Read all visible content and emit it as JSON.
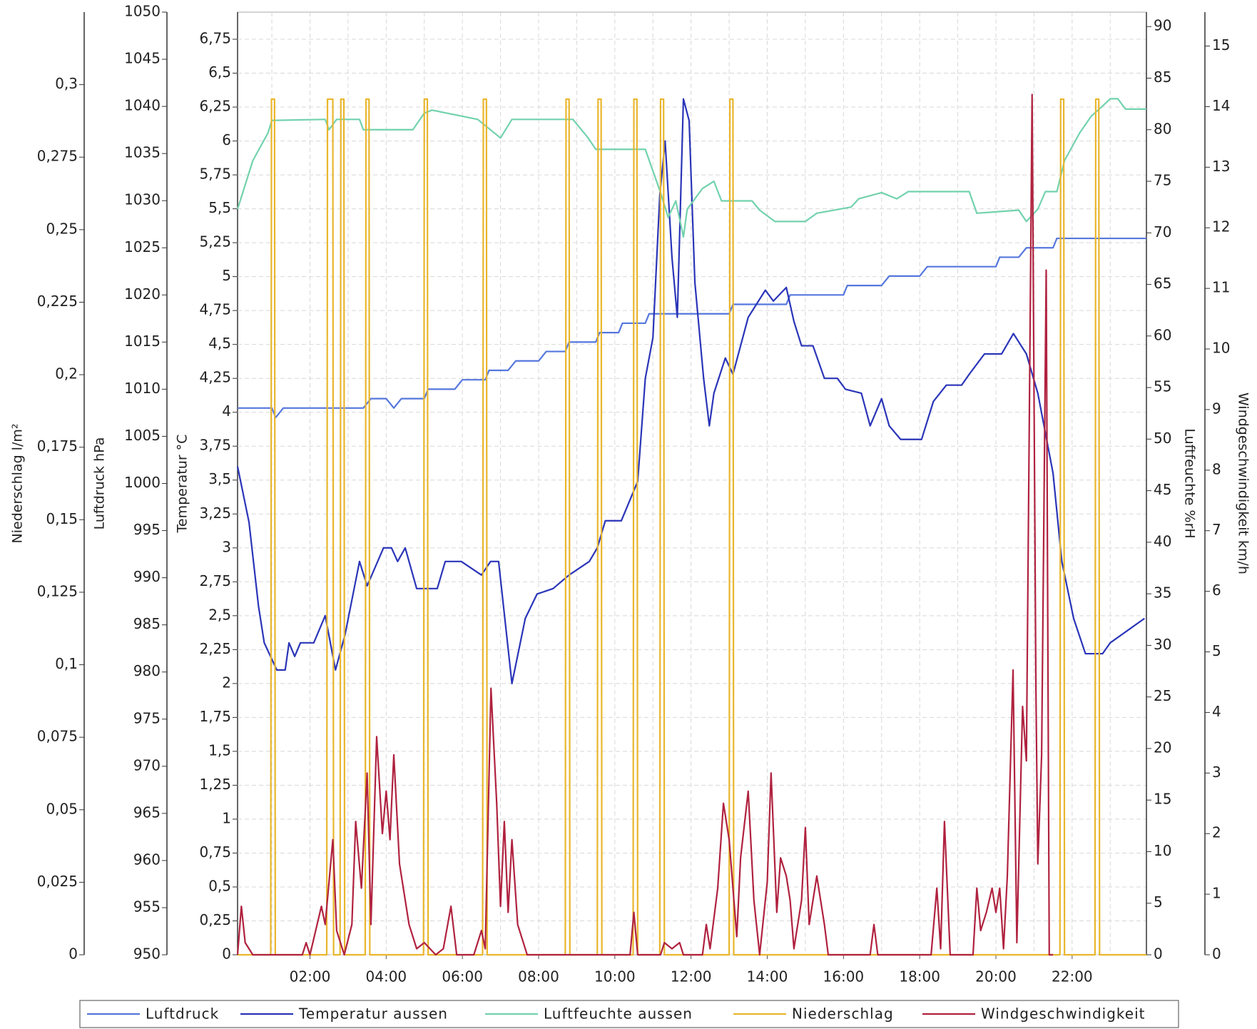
{
  "chart_data": {
    "type": "line",
    "xlim": [
      0.1,
      23.95
    ],
    "xticks": [
      {
        "value": 2,
        "label": "02:00"
      },
      {
        "value": 4,
        "label": "04:00"
      },
      {
        "value": 6,
        "label": "06:00"
      },
      {
        "value": 8,
        "label": "08:00"
      },
      {
        "value": 10,
        "label": "10:00"
      },
      {
        "value": 12,
        "label": "12:00"
      },
      {
        "value": 14,
        "label": "14:00"
      },
      {
        "value": 16,
        "label": "16:00"
      },
      {
        "value": 18,
        "label": "18:00"
      },
      {
        "value": 20,
        "label": "20:00"
      },
      {
        "value": 22,
        "label": "22:00"
      }
    ],
    "xgrid": [
      1,
      3,
      5,
      7,
      9,
      11,
      13,
      15,
      17,
      19,
      21,
      23
    ],
    "grid": true,
    "axes": [
      {
        "label": "Niederschlag  l/m²",
        "side": "left",
        "lim": [
          0,
          0.325
        ],
        "ticks": [
          0,
          {
            "value": 0.025,
            "label": "0,025"
          },
          {
            "value": 0.05,
            "label": "0,05"
          },
          {
            "value": 0.075,
            "label": "0,075"
          },
          {
            "value": 0.1,
            "label": "0,1"
          },
          {
            "value": 0.125,
            "label": "0,125"
          },
          {
            "value": 0.15,
            "label": "0,15"
          },
          {
            "value": 0.175,
            "label": "0,175"
          },
          {
            "value": 0.2,
            "label": "0,2"
          },
          {
            "value": 0.225,
            "label": "0,225"
          },
          {
            "value": 0.25,
            "label": "0,25"
          },
          {
            "value": 0.275,
            "label": "0,275"
          },
          {
            "value": 0.3,
            "label": "0,3"
          }
        ]
      },
      {
        "label": "Luftdruck  hPa",
        "side": "left",
        "lim": [
          950,
          1050
        ],
        "ticks": [
          950,
          955,
          960,
          965,
          970,
          975,
          980,
          985,
          990,
          995,
          1000,
          1005,
          1010,
          1015,
          1020,
          1025,
          1030,
          1035,
          1040,
          1045,
          1050
        ]
      },
      {
        "label": "Temperatur  °C",
        "side": "left",
        "lim": [
          0,
          6.95
        ],
        "grid": true,
        "ticks": [
          0,
          {
            "value": 0.25,
            "label": "0,25"
          },
          {
            "value": 0.5,
            "label": "0,5"
          },
          {
            "value": 0.75,
            "label": "0,75"
          },
          1,
          {
            "value": 1.25,
            "label": "1,25"
          },
          {
            "value": 1.5,
            "label": "1,5"
          },
          {
            "value": 1.75,
            "label": "1,75"
          },
          2,
          {
            "value": 2.25,
            "label": "2,25"
          },
          {
            "value": 2.5,
            "label": "2,5"
          },
          {
            "value": 2.75,
            "label": "2,75"
          },
          3,
          {
            "value": 3.25,
            "label": "3,25"
          },
          {
            "value": 3.5,
            "label": "3,5"
          },
          {
            "value": 3.75,
            "label": "3,75"
          },
          4,
          {
            "value": 4.25,
            "label": "4,25"
          },
          {
            "value": 4.5,
            "label": "4,5"
          },
          {
            "value": 4.75,
            "label": "4,75"
          },
          5,
          {
            "value": 5.25,
            "label": "5,25"
          },
          {
            "value": 5.5,
            "label": "5,5"
          },
          {
            "value": 5.75,
            "label": "5,75"
          },
          6,
          {
            "value": 6.25,
            "label": "6,25"
          },
          {
            "value": 6.5,
            "label": "6,5"
          },
          {
            "value": 6.75,
            "label": "6,75"
          }
        ]
      },
      {
        "label": "Luftfeuchte  %rH",
        "side": "right",
        "lim": [
          0,
          91.4
        ],
        "ticks": [
          0,
          5,
          10,
          15,
          20,
          25,
          30,
          35,
          40,
          45,
          50,
          55,
          60,
          65,
          70,
          75,
          80,
          85,
          90
        ]
      },
      {
        "label": "Windgeschwindigkeit  km/h",
        "side": "right",
        "lim": [
          0,
          15.56
        ],
        "ticks": [
          0,
          1,
          2,
          3,
          4,
          5,
          6,
          7,
          8,
          9,
          10,
          11,
          12,
          13,
          14,
          15
        ]
      }
    ],
    "series": [
      {
        "name": "Luftdruck",
        "color": "#5577dd",
        "axis": 1,
        "x": [
          0.1,
          1.0,
          1.1,
          1.3,
          3.4,
          3.6,
          4.0,
          4.2,
          4.4,
          5.0,
          5.1,
          5.8,
          6.0,
          6.6,
          6.7,
          7.2,
          7.4,
          8.0,
          8.2,
          8.7,
          8.8,
          9.5,
          9.6,
          10.1,
          10.2,
          10.8,
          10.9,
          13.0,
          13.1,
          14.5,
          14.6,
          16.0,
          16.1,
          17.0,
          17.2,
          18.0,
          18.2,
          20.0,
          20.1,
          20.6,
          20.8,
          21.5,
          21.6,
          23.95
        ],
        "values": [
          1008,
          1008,
          1007,
          1008,
          1008,
          1009,
          1009,
          1008,
          1009,
          1009,
          1010,
          1010,
          1011,
          1011,
          1012,
          1012,
          1013,
          1013,
          1014,
          1014,
          1015,
          1015,
          1016,
          1016,
          1017,
          1017,
          1018,
          1018,
          1019,
          1019,
          1020,
          1020,
          1021,
          1021,
          1022,
          1022,
          1023,
          1023,
          1024,
          1024,
          1025,
          1025,
          1026,
          1026
        ]
      },
      {
        "name": "Temperatur aussen",
        "color": "#2a35b8",
        "axis": 2,
        "x": [
          0.1,
          0.4,
          0.65,
          0.8,
          1.13,
          1.35,
          1.45,
          1.6,
          1.75,
          2.1,
          2.4,
          2.67,
          2.92,
          3.3,
          3.5,
          3.93,
          4.14,
          4.3,
          4.5,
          4.8,
          5.34,
          5.55,
          5.97,
          6.5,
          6.74,
          6.95,
          7.3,
          7.65,
          7.96,
          8.38,
          8.8,
          9.33,
          9.54,
          9.75,
          10.17,
          10.6,
          10.8,
          11.0,
          11.18,
          11.32,
          11.5,
          11.64,
          11.8,
          11.95,
          12.1,
          12.33,
          12.48,
          12.6,
          12.9,
          13.1,
          13.5,
          13.95,
          14.16,
          14.5,
          14.7,
          14.9,
          15.2,
          15.5,
          15.84,
          16.05,
          16.47,
          16.7,
          17.0,
          17.2,
          17.5,
          18.05,
          18.36,
          18.7,
          19.1,
          19.3,
          19.7,
          20.15,
          20.46,
          20.8,
          21.1,
          21.5,
          21.73,
          22.04,
          22.35,
          22.8,
          23.0,
          23.5,
          23.9
        ],
        "values": [
          3.6,
          3.19,
          2.57,
          2.3,
          2.1,
          2.1,
          2.3,
          2.2,
          2.3,
          2.3,
          2.5,
          2.1,
          2.36,
          2.9,
          2.72,
          3.0,
          3.0,
          2.9,
          3.0,
          2.7,
          2.7,
          2.9,
          2.9,
          2.8,
          2.9,
          2.9,
          2.0,
          2.48,
          2.66,
          2.7,
          2.8,
          2.9,
          3.0,
          3.2,
          3.2,
          3.49,
          4.25,
          4.55,
          5.6,
          6.0,
          5.14,
          4.7,
          6.31,
          6.15,
          4.96,
          4.25,
          3.9,
          4.14,
          4.4,
          4.28,
          4.7,
          4.9,
          4.82,
          4.92,
          4.67,
          4.49,
          4.49,
          4.25,
          4.25,
          4.17,
          4.14,
          3.9,
          4.1,
          3.9,
          3.8,
          3.8,
          4.08,
          4.2,
          4.2,
          4.28,
          4.43,
          4.43,
          4.58,
          4.43,
          4.14,
          3.55,
          2.9,
          2.48,
          2.22,
          2.22,
          2.3,
          2.4,
          2.48
        ]
      },
      {
        "name": "Luftfeuchte aussen",
        "color": "#72d2ad",
        "axis": 3,
        "x": [
          0.1,
          0.5,
          0.9,
          1.0,
          2.4,
          2.5,
          2.7,
          3.3,
          3.4,
          4.7,
          5.0,
          5.2,
          6.4,
          7.0,
          7.3,
          8.9,
          9.3,
          9.5,
          10.8,
          11.2,
          11.4,
          11.6,
          11.8,
          11.9,
          12.3,
          12.6,
          12.8,
          13.6,
          13.8,
          14.2,
          15.0,
          15.3,
          16.2,
          16.4,
          17.0,
          17.4,
          17.7,
          19.3,
          19.5,
          20.6,
          20.8,
          21.1,
          21.3,
          21.6,
          21.8,
          22.2,
          22.5,
          22.8,
          23.0,
          23.2,
          23.4,
          23.95
        ],
        "values": [
          72.3,
          77,
          79.7,
          80.9,
          81,
          80,
          81,
          81,
          80,
          80,
          81.6,
          81.9,
          81,
          79.2,
          81,
          81,
          79.2,
          78.1,
          78.1,
          73.9,
          71.5,
          73.1,
          69.6,
          72.3,
          74.3,
          75,
          73.1,
          73.1,
          72.2,
          71.1,
          71.1,
          71.9,
          72.5,
          73.3,
          73.9,
          73.3,
          74,
          74,
          71.9,
          72.2,
          71.1,
          72.3,
          74,
          74,
          77,
          79.7,
          81.3,
          82.3,
          83,
          83,
          82,
          82
        ]
      },
      {
        "name": "Niederschlag",
        "color": "#e9b62c",
        "axis": 0,
        "x": [
          0.1,
          0.97,
          0.99,
          1.07,
          1.09,
          2.44,
          2.46,
          2.6,
          2.62,
          2.79,
          2.81,
          2.89,
          2.91,
          3.45,
          3.47,
          3.55,
          3.57,
          4.98,
          5.0,
          5.08,
          5.1,
          6.53,
          6.55,
          6.63,
          6.65,
          8.7,
          8.72,
          8.8,
          8.82,
          9.54,
          9.56,
          9.64,
          9.66,
          10.48,
          10.5,
          10.58,
          10.6,
          11.18,
          11.2,
          11.28,
          11.3,
          13.0,
          13.02,
          13.1,
          13.12,
          21.68,
          21.7,
          21.78,
          21.8,
          22.6,
          22.62,
          22.7,
          22.72,
          23.95
        ],
        "values": [
          0,
          0,
          0.295,
          0.295,
          0,
          0,
          0.295,
          0.295,
          0,
          0,
          0.295,
          0.295,
          0,
          0,
          0.295,
          0.295,
          0,
          0,
          0.295,
          0.295,
          0,
          0,
          0.295,
          0.295,
          0,
          0,
          0.295,
          0.295,
          0,
          0,
          0.295,
          0.295,
          0,
          0,
          0.295,
          0.295,
          0,
          0,
          0.295,
          0.295,
          0,
          0,
          0.295,
          0.295,
          0,
          0,
          0.295,
          0.295,
          0,
          0,
          0.295,
          0.295,
          0,
          0
        ]
      },
      {
        "name": "Windgeschwindigkeit",
        "color": "#b0223f",
        "axis": 4,
        "x": [
          0.1,
          0.2,
          0.3,
          0.5,
          1.8,
          1.9,
          2.0,
          2.3,
          2.4,
          2.6,
          2.7,
          2.9,
          3.1,
          3.2,
          3.35,
          3.5,
          3.6,
          3.75,
          3.9,
          4.0,
          4.1,
          4.2,
          4.35,
          4.6,
          4.8,
          5.0,
          5.3,
          5.5,
          5.7,
          5.85,
          6.3,
          6.5,
          6.6,
          6.75,
          6.9,
          7.0,
          7.1,
          7.2,
          7.3,
          7.45,
          7.6,
          7.7,
          10.4,
          10.5,
          10.6,
          11.2,
          11.3,
          11.5,
          11.7,
          11.8,
          12.3,
          12.4,
          12.5,
          12.7,
          12.85,
          13.0,
          13.2,
          13.3,
          13.5,
          13.65,
          13.8,
          14.0,
          14.1,
          14.25,
          14.35,
          14.5,
          14.6,
          14.7,
          14.9,
          15.0,
          15.1,
          15.3,
          15.5,
          15.6,
          16.7,
          16.8,
          16.9,
          18.3,
          18.45,
          18.55,
          18.65,
          18.8,
          19.4,
          19.5,
          19.6,
          19.75,
          19.9,
          20.0,
          20.1,
          20.2,
          20.3,
          20.45,
          20.55,
          20.7,
          20.8,
          20.95,
          21.05,
          21.1,
          21.2,
          21.32,
          21.4,
          21.5
        ],
        "values": [
          0,
          0.8,
          0.2,
          0,
          0,
          0.2,
          0,
          0.8,
          0.5,
          1.9,
          0.4,
          0,
          0.5,
          2.2,
          1.1,
          3.0,
          0.5,
          3.6,
          2.0,
          2.7,
          1.9,
          3.3,
          1.5,
          0.5,
          0.1,
          0.2,
          0,
          0.1,
          0.8,
          0,
          0,
          0.4,
          0.1,
          4.4,
          2.5,
          0.8,
          2.2,
          0.7,
          1.9,
          0.5,
          0.2,
          0,
          0,
          0.7,
          0,
          0,
          0.2,
          0.1,
          0.2,
          0,
          0,
          0.5,
          0.1,
          1.1,
          2.5,
          1.9,
          0.3,
          1.6,
          2.7,
          0.9,
          0,
          1.2,
          3.0,
          0.7,
          1.6,
          1.3,
          0.9,
          0.1,
          0.9,
          2.1,
          0.5,
          1.3,
          0.5,
          0,
          0,
          0.5,
          0,
          0,
          1.1,
          0.1,
          2.2,
          0,
          0,
          1.1,
          0.4,
          0.7,
          1.1,
          0.7,
          1.1,
          0.1,
          1.3,
          4.7,
          0.2,
          4.1,
          3.2,
          14.2,
          4.4,
          1.5,
          3.3,
          11.3,
          0,
          0
        ]
      }
    ]
  }
}
